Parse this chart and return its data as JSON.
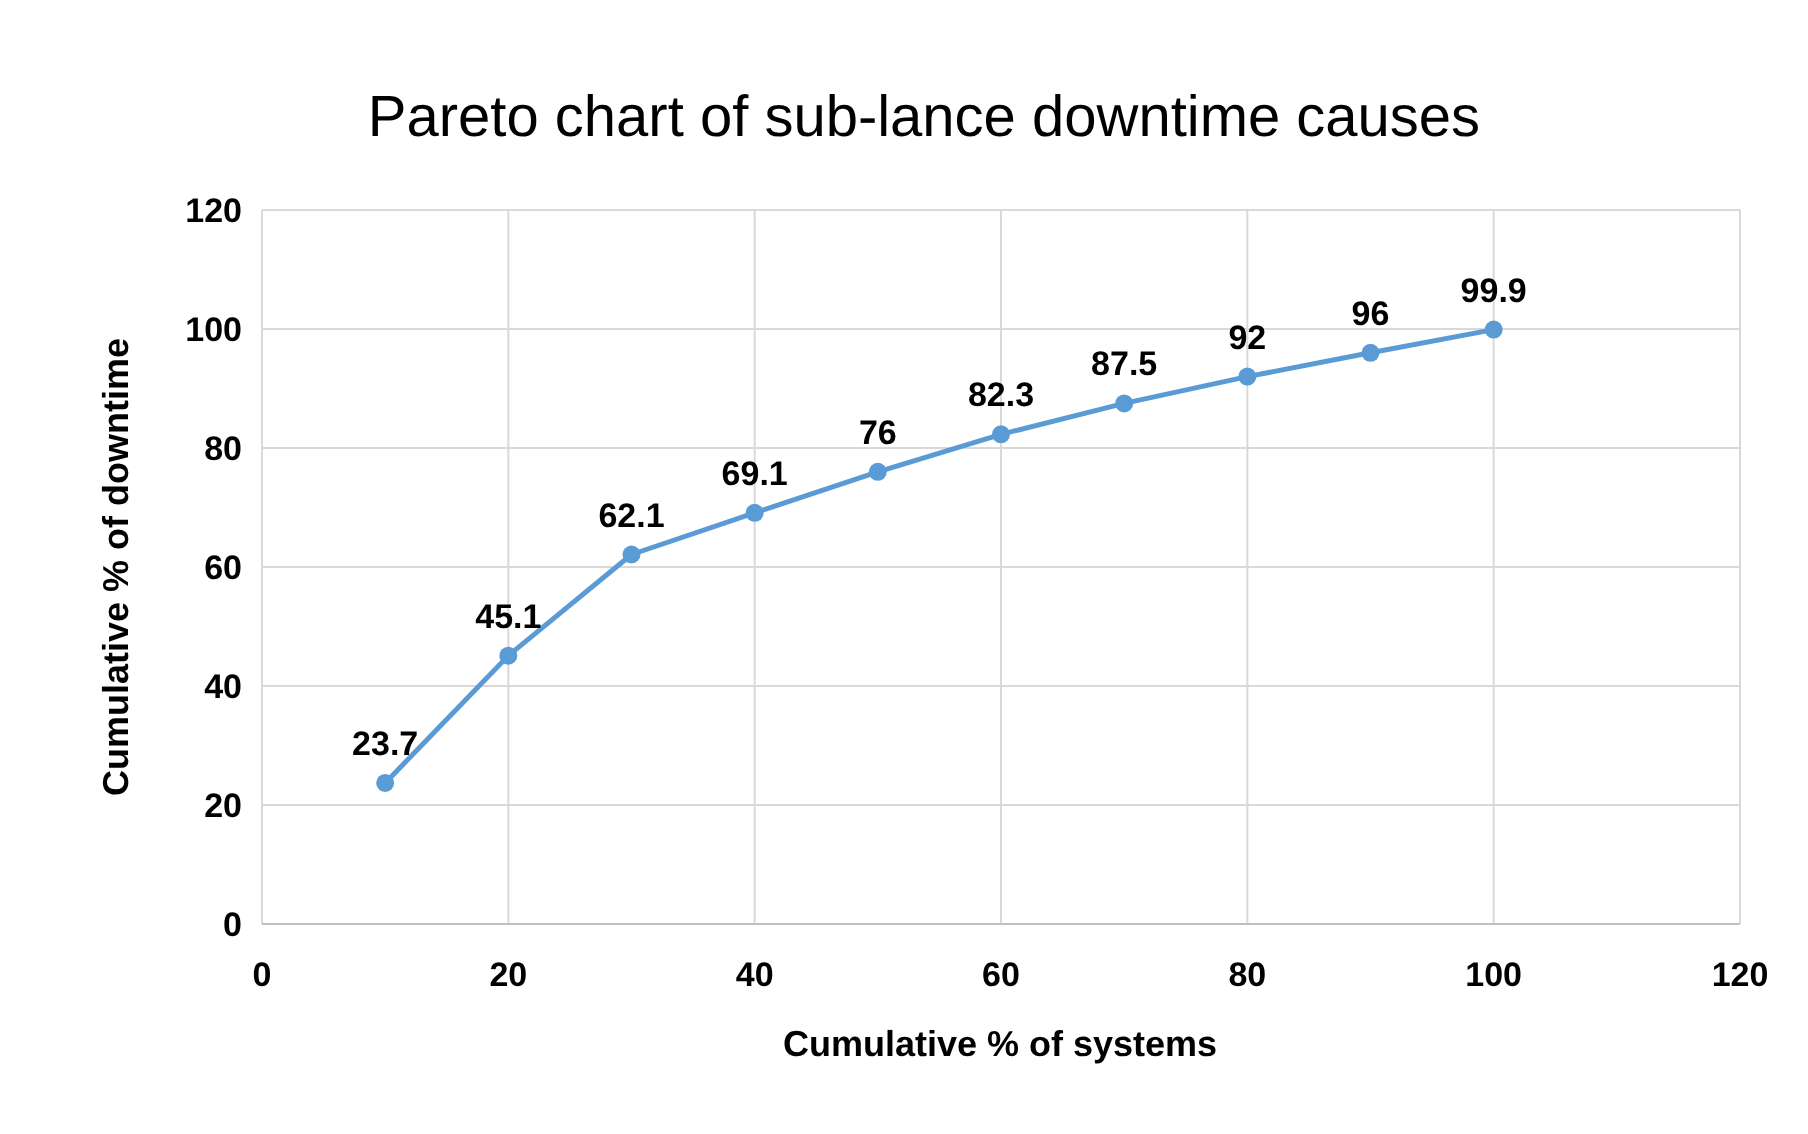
{
  "chart_data": {
    "type": "line",
    "title": "Pareto chart of sub-lance downtime causes",
    "xlabel": "Cumulative % of systems",
    "ylabel": "Cumulative % of downtime",
    "x": [
      10,
      20,
      30,
      40,
      50,
      60,
      70,
      80,
      90,
      100
    ],
    "series": [
      {
        "color": "#5b9bd5",
        "values": [
          23.7,
          45.1,
          62.1,
          69.1,
          76,
          82.3,
          87.5,
          92,
          96,
          99.9
        ]
      }
    ],
    "xlim": [
      0,
      120
    ],
    "xticks": [
      0,
      20,
      40,
      60,
      80,
      100,
      120
    ],
    "ylim": [
      0,
      120
    ],
    "yticks": [
      0,
      20,
      40,
      60,
      80,
      100,
      120
    ],
    "grid": true,
    "data_labels": true,
    "marker": "circle",
    "line_style": "solid"
  }
}
